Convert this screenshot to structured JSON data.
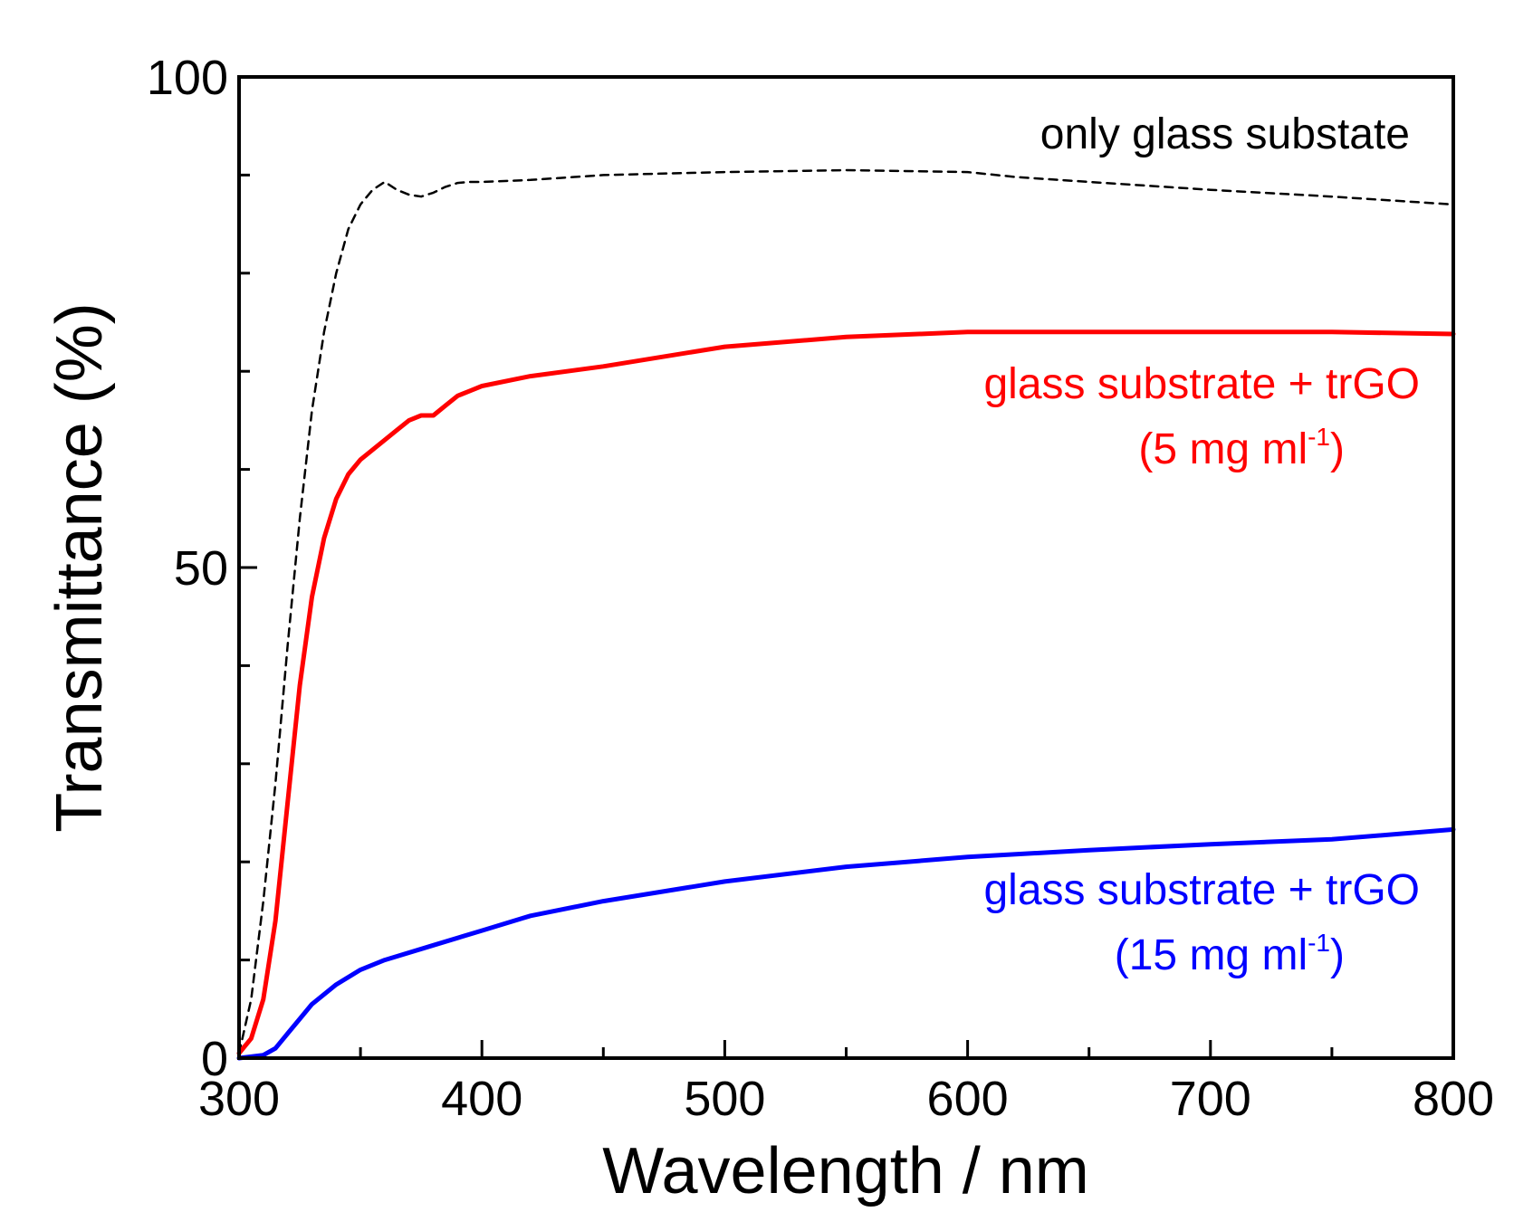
{
  "chart_data": {
    "type": "line",
    "title": "",
    "xlabel": "Wavelength / nm",
    "ylabel": "Transmittance (%)",
    "xlim": [
      300,
      800
    ],
    "ylim": [
      0,
      100
    ],
    "x_major_ticks": [
      300,
      400,
      500,
      600,
      700,
      800
    ],
    "x_minor_ticks": [
      350,
      450,
      550,
      650,
      750
    ],
    "y_major_ticks": [
      0,
      50,
      100
    ],
    "y_minor_ticks": [
      10,
      20,
      30,
      40,
      60,
      70,
      80,
      90
    ],
    "x_tick_labels": [
      "300",
      "400",
      "500",
      "600",
      "700",
      "800"
    ],
    "y_tick_labels": [
      "0",
      "50",
      "100"
    ],
    "grid": false,
    "series": [
      {
        "name": "only glass substate",
        "color": "#000000",
        "dash": "dashed",
        "x": [
          300,
          305,
          310,
          315,
          320,
          325,
          330,
          335,
          340,
          345,
          350,
          355,
          360,
          365,
          370,
          375,
          380,
          385,
          390,
          395,
          400,
          420,
          450,
          500,
          550,
          600,
          620,
          650,
          700,
          750,
          800
        ],
        "y": [
          0.5,
          6,
          16,
          28,
          42,
          55,
          66,
          74,
          80,
          84.5,
          87,
          88.5,
          89.3,
          88.5,
          88,
          87.8,
          88.2,
          88.8,
          89.2,
          89.3,
          89.3,
          89.5,
          90,
          90.3,
          90.5,
          90.3,
          89.8,
          89.3,
          88.5,
          87.8,
          87
        ]
      },
      {
        "name": "glass substrate + trGO (5 mg ml-1)",
        "color": "#ff0000",
        "dash": "solid",
        "x": [
          300,
          305,
          310,
          315,
          320,
          325,
          330,
          335,
          340,
          345,
          350,
          355,
          360,
          365,
          370,
          375,
          380,
          385,
          390,
          395,
          400,
          420,
          450,
          500,
          550,
          600,
          650,
          700,
          750,
          800
        ],
        "y": [
          0.5,
          2,
          6,
          14,
          26,
          38,
          47,
          53,
          57,
          59.5,
          61,
          62,
          63,
          64,
          65,
          65.5,
          65.5,
          66.5,
          67.5,
          68,
          68.5,
          69.5,
          70.5,
          72.5,
          73.5,
          74,
          74,
          74,
          74,
          73.8
        ]
      },
      {
        "name": "glass substrate + trGO (15 mg ml-1)",
        "color": "#0000ff",
        "dash": "solid",
        "x": [
          300,
          310,
          315,
          320,
          325,
          330,
          340,
          350,
          360,
          380,
          400,
          420,
          450,
          500,
          550,
          600,
          650,
          700,
          750,
          800
        ],
        "y": [
          0,
          0.3,
          1,
          2.5,
          4,
          5.5,
          7.5,
          9,
          10,
          11.5,
          13,
          14.5,
          16,
          18,
          19.5,
          20.5,
          21.2,
          21.8,
          22.3,
          23.3
        ]
      }
    ],
    "annotations": [
      {
        "text": "only glass substate",
        "color": "#000000"
      },
      {
        "text": "glass substrate + trGO",
        "subtext": "(5 mg ml",
        "sup": "-1",
        "close": ")",
        "color": "#ff0000"
      },
      {
        "text": "glass substrate + trGO",
        "subtext": "(15 mg ml",
        "sup": "-1",
        "close": ")",
        "color": "#0000ff"
      }
    ]
  }
}
